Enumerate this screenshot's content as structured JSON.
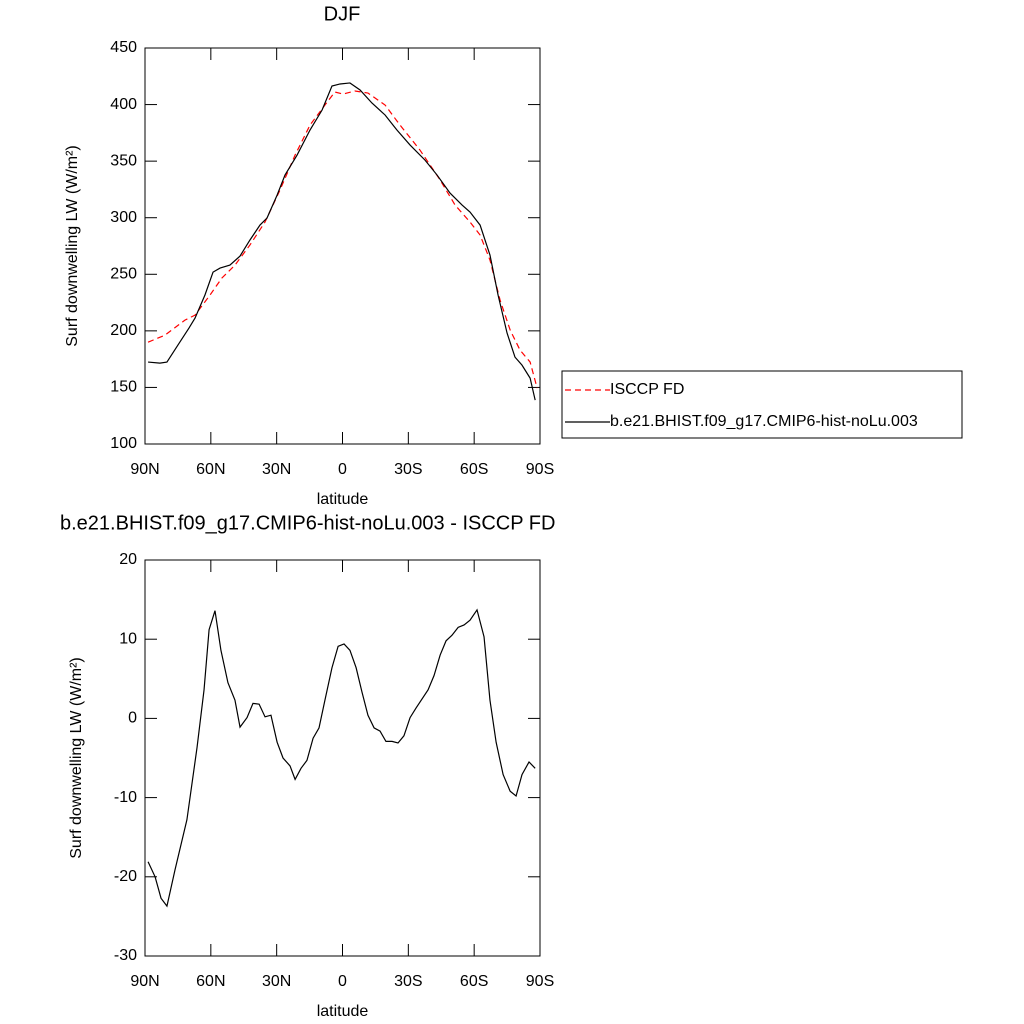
{
  "chart_data": [
    {
      "type": "line",
      "title": "DJF",
      "xlabel": "latitude",
      "ylabel": "Surf downwelling LW (W/m²)",
      "xlim": [
        90,
        -90
      ],
      "xticks": [
        {
          "value": 90,
          "label": "90N"
        },
        {
          "value": 60,
          "label": "60N"
        },
        {
          "value": 30,
          "label": "30N"
        },
        0,
        {
          "value": -30,
          "label": "30S"
        },
        {
          "value": -60,
          "label": "60S"
        },
        {
          "value": -90,
          "label": "90S"
        }
      ],
      "ylim": [
        100,
        450
      ],
      "yticks": [
        100,
        150,
        200,
        250,
        300,
        350,
        400,
        450
      ],
      "legend": "right",
      "series": [
        {
          "name": "ISCCP FD",
          "color": "#ff0000",
          "dash": true,
          "x": [
            88.6,
            80.9,
            71.8,
            67.2,
            60.4,
            55.0,
            49.0,
            42.2,
            35.3,
            28.5,
            21.6,
            14.8,
            8.0,
            3.5,
            -0.2,
            -5.7,
            -11.6,
            -19.4,
            -26.2,
            -35.3,
            -44.5,
            -51.3,
            -58.1,
            -62.7,
            -67.2,
            -71.8,
            -76.4,
            -80.9,
            -85.5,
            -88.7
          ],
          "values": [
            190,
            196.2,
            209.5,
            213.9,
            231.6,
            246.6,
            258.1,
            275.8,
            296.2,
            324.4,
            355.4,
            381.9,
            399.6,
            411.1,
            409.3,
            412,
            410.2,
            399.6,
            381.9,
            359.8,
            333.3,
            311.2,
            296.2,
            284.7,
            262.6,
            227.2,
            200.7,
            183,
            172.4,
            149.4
          ]
        },
        {
          "name": "b.e21.BHIST.f09_g17.CMIP6-hist-noLu.003",
          "color": "#000000",
          "dash": false,
          "x": [
            88.6,
            83.2,
            80.0,
            75.0,
            70.0,
            67.2,
            62.7,
            59.0,
            55.8,
            51.3,
            46.7,
            42.2,
            37.6,
            34.4,
            29.8,
            26.2,
            20.7,
            14.8,
            9.3,
            4.8,
            1.1,
            -3.4,
            -8.0,
            -13.4,
            -19.4,
            -24.8,
            -30.8,
            -37.6,
            -43.1,
            -49.0,
            -54.5,
            -58.1,
            -62.7,
            -67.2,
            -70.9,
            -75.0,
            -78.6,
            -81.8,
            -85.5,
            -87.8
          ],
          "values": [
            172.4,
            171.5,
            172.4,
            187.4,
            202.4,
            211.3,
            231.6,
            251.9,
            255.5,
            258.1,
            266.1,
            280.2,
            293.5,
            299.7,
            320,
            337.7,
            355.4,
            377.5,
            395.2,
            416.4,
            418.2,
            419.1,
            412.9,
            401.4,
            390.8,
            377.5,
            364.2,
            350.9,
            337.7,
            321.8,
            311.2,
            305,
            293.5,
            267,
            231.6,
            198,
            176.8,
            169.7,
            158.2,
            138.8
          ]
        }
      ]
    },
    {
      "type": "line",
      "title": "b.e21.BHIST.f09_g17.CMIP6-hist-noLu.003 - ISCCP FD",
      "xlabel": "latitude",
      "ylabel": "Surf downwelling LW (W/m²)",
      "xlim": [
        90,
        -90
      ],
      "xticks": [
        {
          "value": 90,
          "label": "90N"
        },
        {
          "value": 60,
          "label": "60N"
        },
        {
          "value": 30,
          "label": "30N"
        },
        0,
        {
          "value": -30,
          "label": "30S"
        },
        {
          "value": -60,
          "label": "60S"
        },
        {
          "value": -90,
          "label": "90S"
        }
      ],
      "ylim": [
        -30,
        20
      ],
      "yticks": [
        -30,
        -20,
        -10,
        0,
        10,
        20
      ],
      "color": "#000000",
      "x": [
        88.6,
        85.4,
        82.7,
        80.0,
        76.3,
        70.9,
        66.3,
        63.1,
        60.8,
        58.1,
        55.4,
        52.2,
        49.0,
        46.7,
        43.5,
        40.8,
        38.0,
        35.3,
        32.6,
        29.8,
        27.1,
        23.9,
        21.6,
        18.9,
        16.2,
        13.4,
        10.7,
        8.0,
        4.8,
        2.0,
        -0.7,
        -3.4,
        -6.2,
        -8.9,
        -11.6,
        -14.4,
        -17.1,
        -19.8,
        -22.6,
        -25.3,
        -28.0,
        -30.8,
        -33.5,
        -39.0,
        -41.7,
        -44.5,
        -47.2,
        -49.9,
        -52.7,
        -55.4,
        -58.1,
        -61.3,
        -64.5,
        -67.2,
        -70.0,
        -73.2,
        -76.4,
        -79.1,
        -81.8,
        -85.0,
        -87.8
      ],
      "values": [
        -18.1,
        -20.0,
        -22.7,
        -23.7,
        -19.1,
        -12.8,
        -3.7,
        3.6,
        11.2,
        13.6,
        8.6,
        4.5,
        2.3,
        -1.1,
        0.1,
        1.9,
        1.8,
        0.2,
        0.4,
        -3.0,
        -5.0,
        -6.0,
        -7.7,
        -6.3,
        -5.3,
        -2.5,
        -1.2,
        2.3,
        6.4,
        9.1,
        9.4,
        8.6,
        6.4,
        3.3,
        0.4,
        -1.2,
        -1.6,
        -2.9,
        -2.9,
        -3.1,
        -2.2,
        0.1,
        1.3,
        3.6,
        5.4,
        8.0,
        9.8,
        10.5,
        11.5,
        11.8,
        12.4,
        13.7,
        10.3,
        2.3,
        -3.0,
        -7.1,
        -9.2,
        -9.8,
        -7.1,
        -5.5,
        -6.3
      ]
    }
  ]
}
